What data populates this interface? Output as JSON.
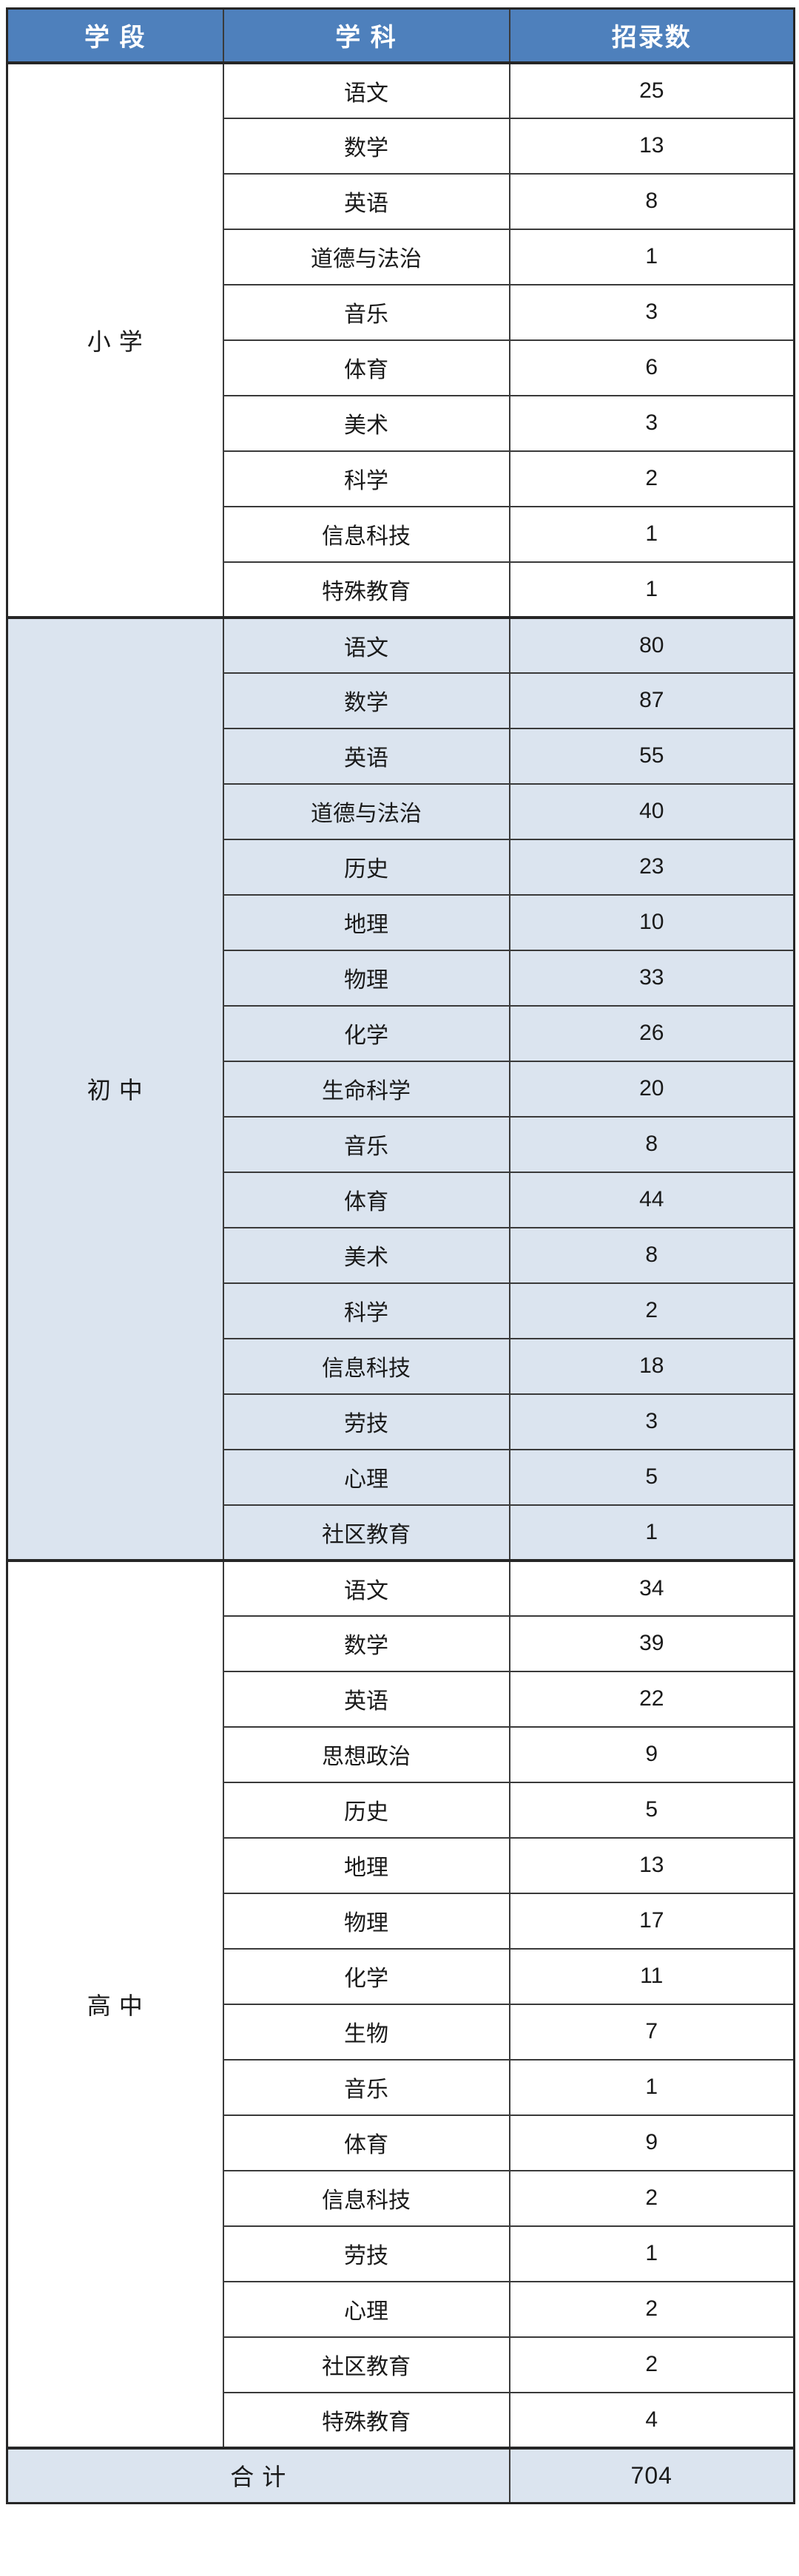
{
  "colors": {
    "header_bg": "#4E80BC",
    "header_text": "#FFFFFF",
    "body_text": "#1A1A1A",
    "border": "#3A3A3A",
    "border_strong": "#262626",
    "page_bg": "#FFFFFF",
    "section_highlight_bg": "#DBE4EF",
    "section_plain_bg": "#FFFFFF",
    "total_row_bg": "#DBE4EF"
  },
  "table": {
    "headers": [
      "学 段",
      "学 科",
      "招录数"
    ],
    "sections": [
      {
        "stage": "小 学",
        "bg": "#FFFFFF",
        "rows": [
          [
            "语文",
            25
          ],
          [
            "数学",
            13
          ],
          [
            "英语",
            8
          ],
          [
            "道德与法治",
            1
          ],
          [
            "音乐",
            3
          ],
          [
            "体育",
            6
          ],
          [
            "美术",
            3
          ],
          [
            "科学",
            2
          ],
          [
            "信息科技",
            1
          ],
          [
            "特殊教育",
            1
          ]
        ]
      },
      {
        "stage": "初 中",
        "bg": "#DBE4EF",
        "rows": [
          [
            "语文",
            80
          ],
          [
            "数学",
            87
          ],
          [
            "英语",
            55
          ],
          [
            "道德与法治",
            40
          ],
          [
            "历史",
            23
          ],
          [
            "地理",
            10
          ],
          [
            "物理",
            33
          ],
          [
            "化学",
            26
          ],
          [
            "生命科学",
            20
          ],
          [
            "音乐",
            8
          ],
          [
            "体育",
            44
          ],
          [
            "美术",
            8
          ],
          [
            "科学",
            2
          ],
          [
            "信息科技",
            18
          ],
          [
            "劳技",
            3
          ],
          [
            "心理",
            5
          ],
          [
            "社区教育",
            1
          ]
        ]
      },
      {
        "stage": "高 中",
        "bg": "#FFFFFF",
        "rows": [
          [
            "语文",
            34
          ],
          [
            "数学",
            39
          ],
          [
            "英语",
            22
          ],
          [
            "思想政治",
            9
          ],
          [
            "历史",
            5
          ],
          [
            "地理",
            13
          ],
          [
            "物理",
            17
          ],
          [
            "化学",
            11
          ],
          [
            "生物",
            7
          ],
          [
            "音乐",
            1
          ],
          [
            "体育",
            9
          ],
          [
            "信息科技",
            2
          ],
          [
            "劳技",
            1
          ],
          [
            "心理",
            2
          ],
          [
            "社区教育",
            2
          ],
          [
            "特殊教育",
            4
          ]
        ]
      }
    ],
    "total": {
      "label": "合 计",
      "value": 704,
      "bg": "#DBE4EF"
    }
  },
  "chart_data": {
    "type": "table",
    "title": "",
    "columns": [
      "学段",
      "学科",
      "招录数"
    ],
    "rows": [
      [
        "小学",
        "语文",
        25
      ],
      [
        "小学",
        "数学",
        13
      ],
      [
        "小学",
        "英语",
        8
      ],
      [
        "小学",
        "道德与法治",
        1
      ],
      [
        "小学",
        "音乐",
        3
      ],
      [
        "小学",
        "体育",
        6
      ],
      [
        "小学",
        "美术",
        3
      ],
      [
        "小学",
        "科学",
        2
      ],
      [
        "小学",
        "信息科技",
        1
      ],
      [
        "小学",
        "特殊教育",
        1
      ],
      [
        "初中",
        "语文",
        80
      ],
      [
        "初中",
        "数学",
        87
      ],
      [
        "初中",
        "英语",
        55
      ],
      [
        "初中",
        "道德与法治",
        40
      ],
      [
        "初中",
        "历史",
        23
      ],
      [
        "初中",
        "地理",
        10
      ],
      [
        "初中",
        "物理",
        33
      ],
      [
        "初中",
        "化学",
        26
      ],
      [
        "初中",
        "生命科学",
        20
      ],
      [
        "初中",
        "音乐",
        8
      ],
      [
        "初中",
        "体育",
        44
      ],
      [
        "初中",
        "美术",
        8
      ],
      [
        "初中",
        "科学",
        2
      ],
      [
        "初中",
        "信息科技",
        18
      ],
      [
        "初中",
        "劳技",
        3
      ],
      [
        "初中",
        "心理",
        5
      ],
      [
        "初中",
        "社区教育",
        1
      ],
      [
        "高中",
        "语文",
        34
      ],
      [
        "高中",
        "数学",
        39
      ],
      [
        "高中",
        "英语",
        22
      ],
      [
        "高中",
        "思想政治",
        9
      ],
      [
        "高中",
        "历史",
        5
      ],
      [
        "高中",
        "地理",
        13
      ],
      [
        "高中",
        "物理",
        17
      ],
      [
        "高中",
        "化学",
        11
      ],
      [
        "高中",
        "生物",
        7
      ],
      [
        "高中",
        "音乐",
        1
      ],
      [
        "高中",
        "体育",
        9
      ],
      [
        "高中",
        "信息科技",
        2
      ],
      [
        "高中",
        "劳技",
        1
      ],
      [
        "高中",
        "心理",
        2
      ],
      [
        "高中",
        "社区教育",
        2
      ],
      [
        "高中",
        "特殊教育",
        4
      ]
    ],
    "total_label": "合计",
    "total_value": 704
  }
}
